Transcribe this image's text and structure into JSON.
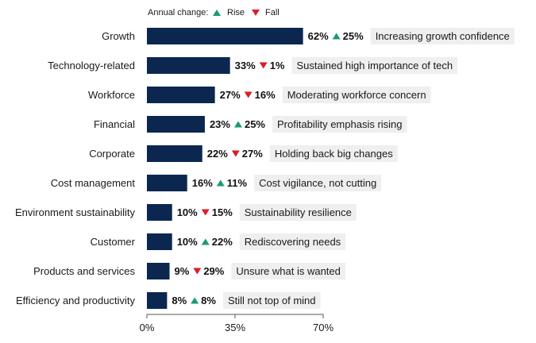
{
  "legend": {
    "title": "Annual change:",
    "rise_label": "Rise",
    "fall_label": "Fall"
  },
  "colors": {
    "bar": "#0b2750",
    "rise": "#1a9a78",
    "fall": "#d91f26",
    "annotation_bg": "#efefef"
  },
  "chart_data": {
    "type": "bar",
    "orientation": "horizontal",
    "categories": [
      "Growth",
      "Technology-related",
      "Workforce",
      "Financial",
      "Corporate",
      "Cost management",
      "Environment sustainability",
      "Customer",
      "Products and services",
      "Efficiency and productivity"
    ],
    "values": [
      62,
      33,
      27,
      23,
      22,
      16,
      10,
      10,
      9,
      8
    ],
    "value_labels": [
      "62%",
      "33%",
      "27%",
      "23%",
      "22%",
      "16%",
      "10%",
      "10%",
      "9%",
      "8%"
    ],
    "annual_change": [
      {
        "direction": "rise",
        "label": "25%"
      },
      {
        "direction": "fall",
        "label": "1%"
      },
      {
        "direction": "fall",
        "label": "16%"
      },
      {
        "direction": "rise",
        "label": "25%"
      },
      {
        "direction": "fall",
        "label": "27%"
      },
      {
        "direction": "rise",
        "label": "11%"
      },
      {
        "direction": "fall",
        "label": "15%"
      },
      {
        "direction": "rise",
        "label": "22%"
      },
      {
        "direction": "fall",
        "label": "29%"
      },
      {
        "direction": "rise",
        "label": "8%"
      }
    ],
    "annotations": [
      "Increasing growth confidence",
      "Sustained high importance of tech",
      "Moderating workforce concern",
      "Profitability emphasis rising",
      "Holding back big changes",
      "Cost vigilance, not cutting",
      "Sustainability resilience",
      "Rediscovering needs",
      "Unsure what is wanted",
      "Still not top of mind"
    ],
    "xlim": [
      0,
      70
    ],
    "xticks": [
      0,
      35,
      70
    ],
    "xtick_labels": [
      "0%",
      "35%",
      "70%"
    ],
    "grid": false,
    "legend_position": "top-left"
  }
}
